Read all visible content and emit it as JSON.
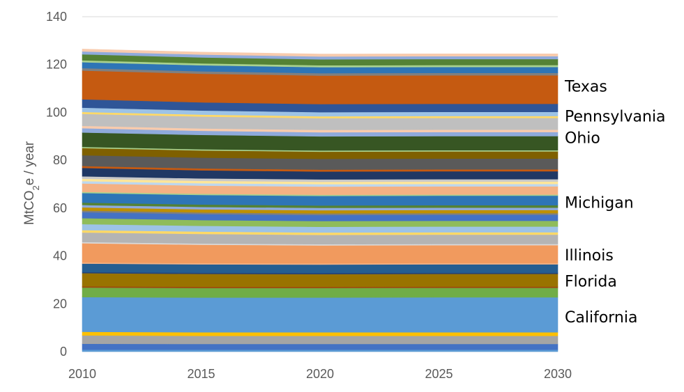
{
  "chart_data": {
    "type": "area",
    "stacked": true,
    "title": "",
    "xlabel": "",
    "ylabel_main": "MtCO",
    "ylabel_sub": "2",
    "ylabel_tail": "e / year",
    "x": [
      2010,
      2015,
      2020,
      2025,
      2030
    ],
    "xticks": [
      "2010",
      "2015",
      "2020",
      "2025",
      "2030"
    ],
    "yticks": [
      "0",
      "20",
      "40",
      "60",
      "80",
      "100",
      "120",
      "140"
    ],
    "ylim": [
      0,
      140
    ],
    "xlim": [
      2010,
      2030
    ],
    "grid": "horizontal",
    "legend": "none",
    "layers": [
      {
        "color": "#5b9bd5",
        "values": [
          0.8,
          0.8,
          0.8,
          0.8,
          0.8
        ]
      },
      {
        "color": "#4472c4",
        "values": [
          2.5,
          2.4,
          2.4,
          2.4,
          2.4
        ]
      },
      {
        "color": "#a5a5a5",
        "values": [
          3.5,
          3.4,
          3.4,
          3.4,
          3.4
        ]
      },
      {
        "color": "#ffc000",
        "values": [
          1.5,
          1.5,
          1.5,
          1.5,
          1.5
        ]
      },
      {
        "color": "#5b9bd5",
        "values": [
          14.5,
          14.5,
          14.5,
          14.6,
          14.6
        ]
      },
      {
        "color": "#70ad47",
        "values": [
          4.0,
          4.0,
          4.0,
          4.0,
          4.0
        ]
      },
      {
        "color": "#9e480e",
        "values": [
          0.5,
          0.5,
          0.5,
          0.5,
          0.5
        ]
      },
      {
        "color": "#997300",
        "values": [
          5.5,
          5.4,
          5.3,
          5.3,
          5.3
        ]
      },
      {
        "color": "#264478",
        "values": [
          0.5,
          0.5,
          0.5,
          0.5,
          0.5
        ]
      },
      {
        "color": "#255e91",
        "values": [
          3.5,
          3.5,
          3.5,
          3.5,
          3.5
        ]
      },
      {
        "color": "#f4b183",
        "values": [
          0.5,
          0.5,
          0.5,
          0.5,
          0.5
        ]
      },
      {
        "color": "#f19a5e",
        "values": [
          8.0,
          7.7,
          7.5,
          7.5,
          7.5
        ]
      },
      {
        "color": "#d9d9d9",
        "values": [
          0.5,
          0.5,
          0.5,
          0.5,
          0.5
        ]
      },
      {
        "color": "#b4b4b4",
        "values": [
          4.0,
          4.0,
          3.9,
          3.9,
          3.9
        ]
      },
      {
        "color": "#ffd966",
        "values": [
          1.0,
          1.0,
          1.0,
          1.0,
          1.0
        ]
      },
      {
        "color": "#9dc3e6",
        "values": [
          2.5,
          2.4,
          2.4,
          2.4,
          2.4
        ]
      },
      {
        "color": "#8fbc5a",
        "values": [
          2.5,
          2.4,
          2.4,
          2.4,
          2.4
        ]
      },
      {
        "color": "#4472c4",
        "values": [
          2.5,
          2.5,
          2.5,
          2.5,
          2.5
        ]
      },
      {
        "color": "#7f7f7f",
        "values": [
          0.7,
          0.7,
          0.7,
          0.7,
          0.7
        ]
      },
      {
        "color": "#bf9000",
        "values": [
          1.3,
          1.3,
          1.3,
          1.3,
          1.3
        ]
      },
      {
        "color": "#8faadc",
        "values": [
          1.0,
          1.0,
          1.0,
          1.0,
          1.0
        ]
      },
      {
        "color": "#548235",
        "values": [
          1.0,
          1.0,
          1.0,
          1.0,
          1.0
        ]
      },
      {
        "color": "#2e75b6",
        "values": [
          4.0,
          4.0,
          4.0,
          4.0,
          4.0
        ]
      },
      {
        "color": "#a9d18e",
        "values": [
          0.5,
          0.5,
          0.5,
          0.5,
          0.5
        ]
      },
      {
        "color": "#f4b183",
        "values": [
          3.5,
          3.4,
          3.4,
          3.4,
          3.4
        ]
      },
      {
        "color": "#bdd7ee",
        "values": [
          1.0,
          1.0,
          1.0,
          1.0,
          1.0
        ]
      },
      {
        "color": "#ffe699",
        "values": [
          1.0,
          1.0,
          1.0,
          1.0,
          1.0
        ]
      },
      {
        "color": "#c9c9c9",
        "values": [
          1.0,
          1.0,
          1.0,
          1.0,
          1.0
        ]
      },
      {
        "color": "#203864",
        "values": [
          3.5,
          3.4,
          3.3,
          3.3,
          3.3
        ]
      },
      {
        "color": "#c55a11",
        "values": [
          0.8,
          0.8,
          0.8,
          0.8,
          0.8
        ]
      },
      {
        "color": "#5a5a5a",
        "values": [
          4.5,
          4.5,
          4.5,
          4.5,
          4.5
        ]
      },
      {
        "color": "#7f6000",
        "values": [
          3.0,
          3.0,
          3.0,
          3.0,
          3.0
        ]
      },
      {
        "color": "#a9d18e",
        "values": [
          0.5,
          0.5,
          0.5,
          0.5,
          0.5
        ]
      },
      {
        "color": "#375623",
        "values": [
          6.0,
          6.0,
          5.9,
          5.9,
          5.9
        ]
      },
      {
        "color": "#8faadc",
        "values": [
          1.8,
          1.7,
          1.7,
          1.7,
          1.7
        ]
      },
      {
        "color": "#f8cbad",
        "values": [
          1.0,
          1.0,
          1.0,
          1.0,
          1.0
        ]
      },
      {
        "color": "#bfbfbf",
        "values": [
          5.0,
          5.0,
          4.9,
          4.9,
          4.9
        ]
      },
      {
        "color": "#ffd966",
        "values": [
          0.8,
          0.8,
          0.8,
          0.8,
          0.8
        ]
      },
      {
        "color": "#9dc3e6",
        "values": [
          1.8,
          1.7,
          1.7,
          1.7,
          1.7
        ]
      },
      {
        "color": "#2f5597",
        "values": [
          3.5,
          3.4,
          3.4,
          3.4,
          3.4
        ]
      },
      {
        "color": "#c55a11",
        "values": [
          12.0,
          12.0,
          11.9,
          11.9,
          11.9
        ]
      },
      {
        "color": "#808080",
        "values": [
          1.0,
          1.0,
          1.0,
          1.0,
          1.0
        ]
      },
      {
        "color": "#2e75b6",
        "values": [
          2.5,
          2.5,
          2.5,
          2.5,
          2.5
        ]
      },
      {
        "color": "#a9d18e",
        "values": [
          0.8,
          0.8,
          0.8,
          0.8,
          0.8
        ]
      },
      {
        "color": "#548235",
        "values": [
          2.5,
          2.5,
          2.5,
          2.5,
          2.5
        ]
      },
      {
        "color": "#8faadc",
        "values": [
          1.2,
          1.2,
          1.2,
          1.2,
          1.2
        ]
      },
      {
        "color": "#f8cbad",
        "values": [
          1.0,
          1.0,
          1.0,
          1.0,
          1.0
        ]
      }
    ],
    "annotations": [
      {
        "text": "Texas",
        "y": 111
      },
      {
        "text": "Pennsylvania",
        "y": 98.5
      },
      {
        "text": "Ohio",
        "y": 89.5
      },
      {
        "text": "Michigan",
        "y": 62.5
      },
      {
        "text": "Illinois",
        "y": 40.5
      },
      {
        "text": "Florida",
        "y": 29.5
      },
      {
        "text": "California",
        "y": 14.5
      }
    ]
  }
}
